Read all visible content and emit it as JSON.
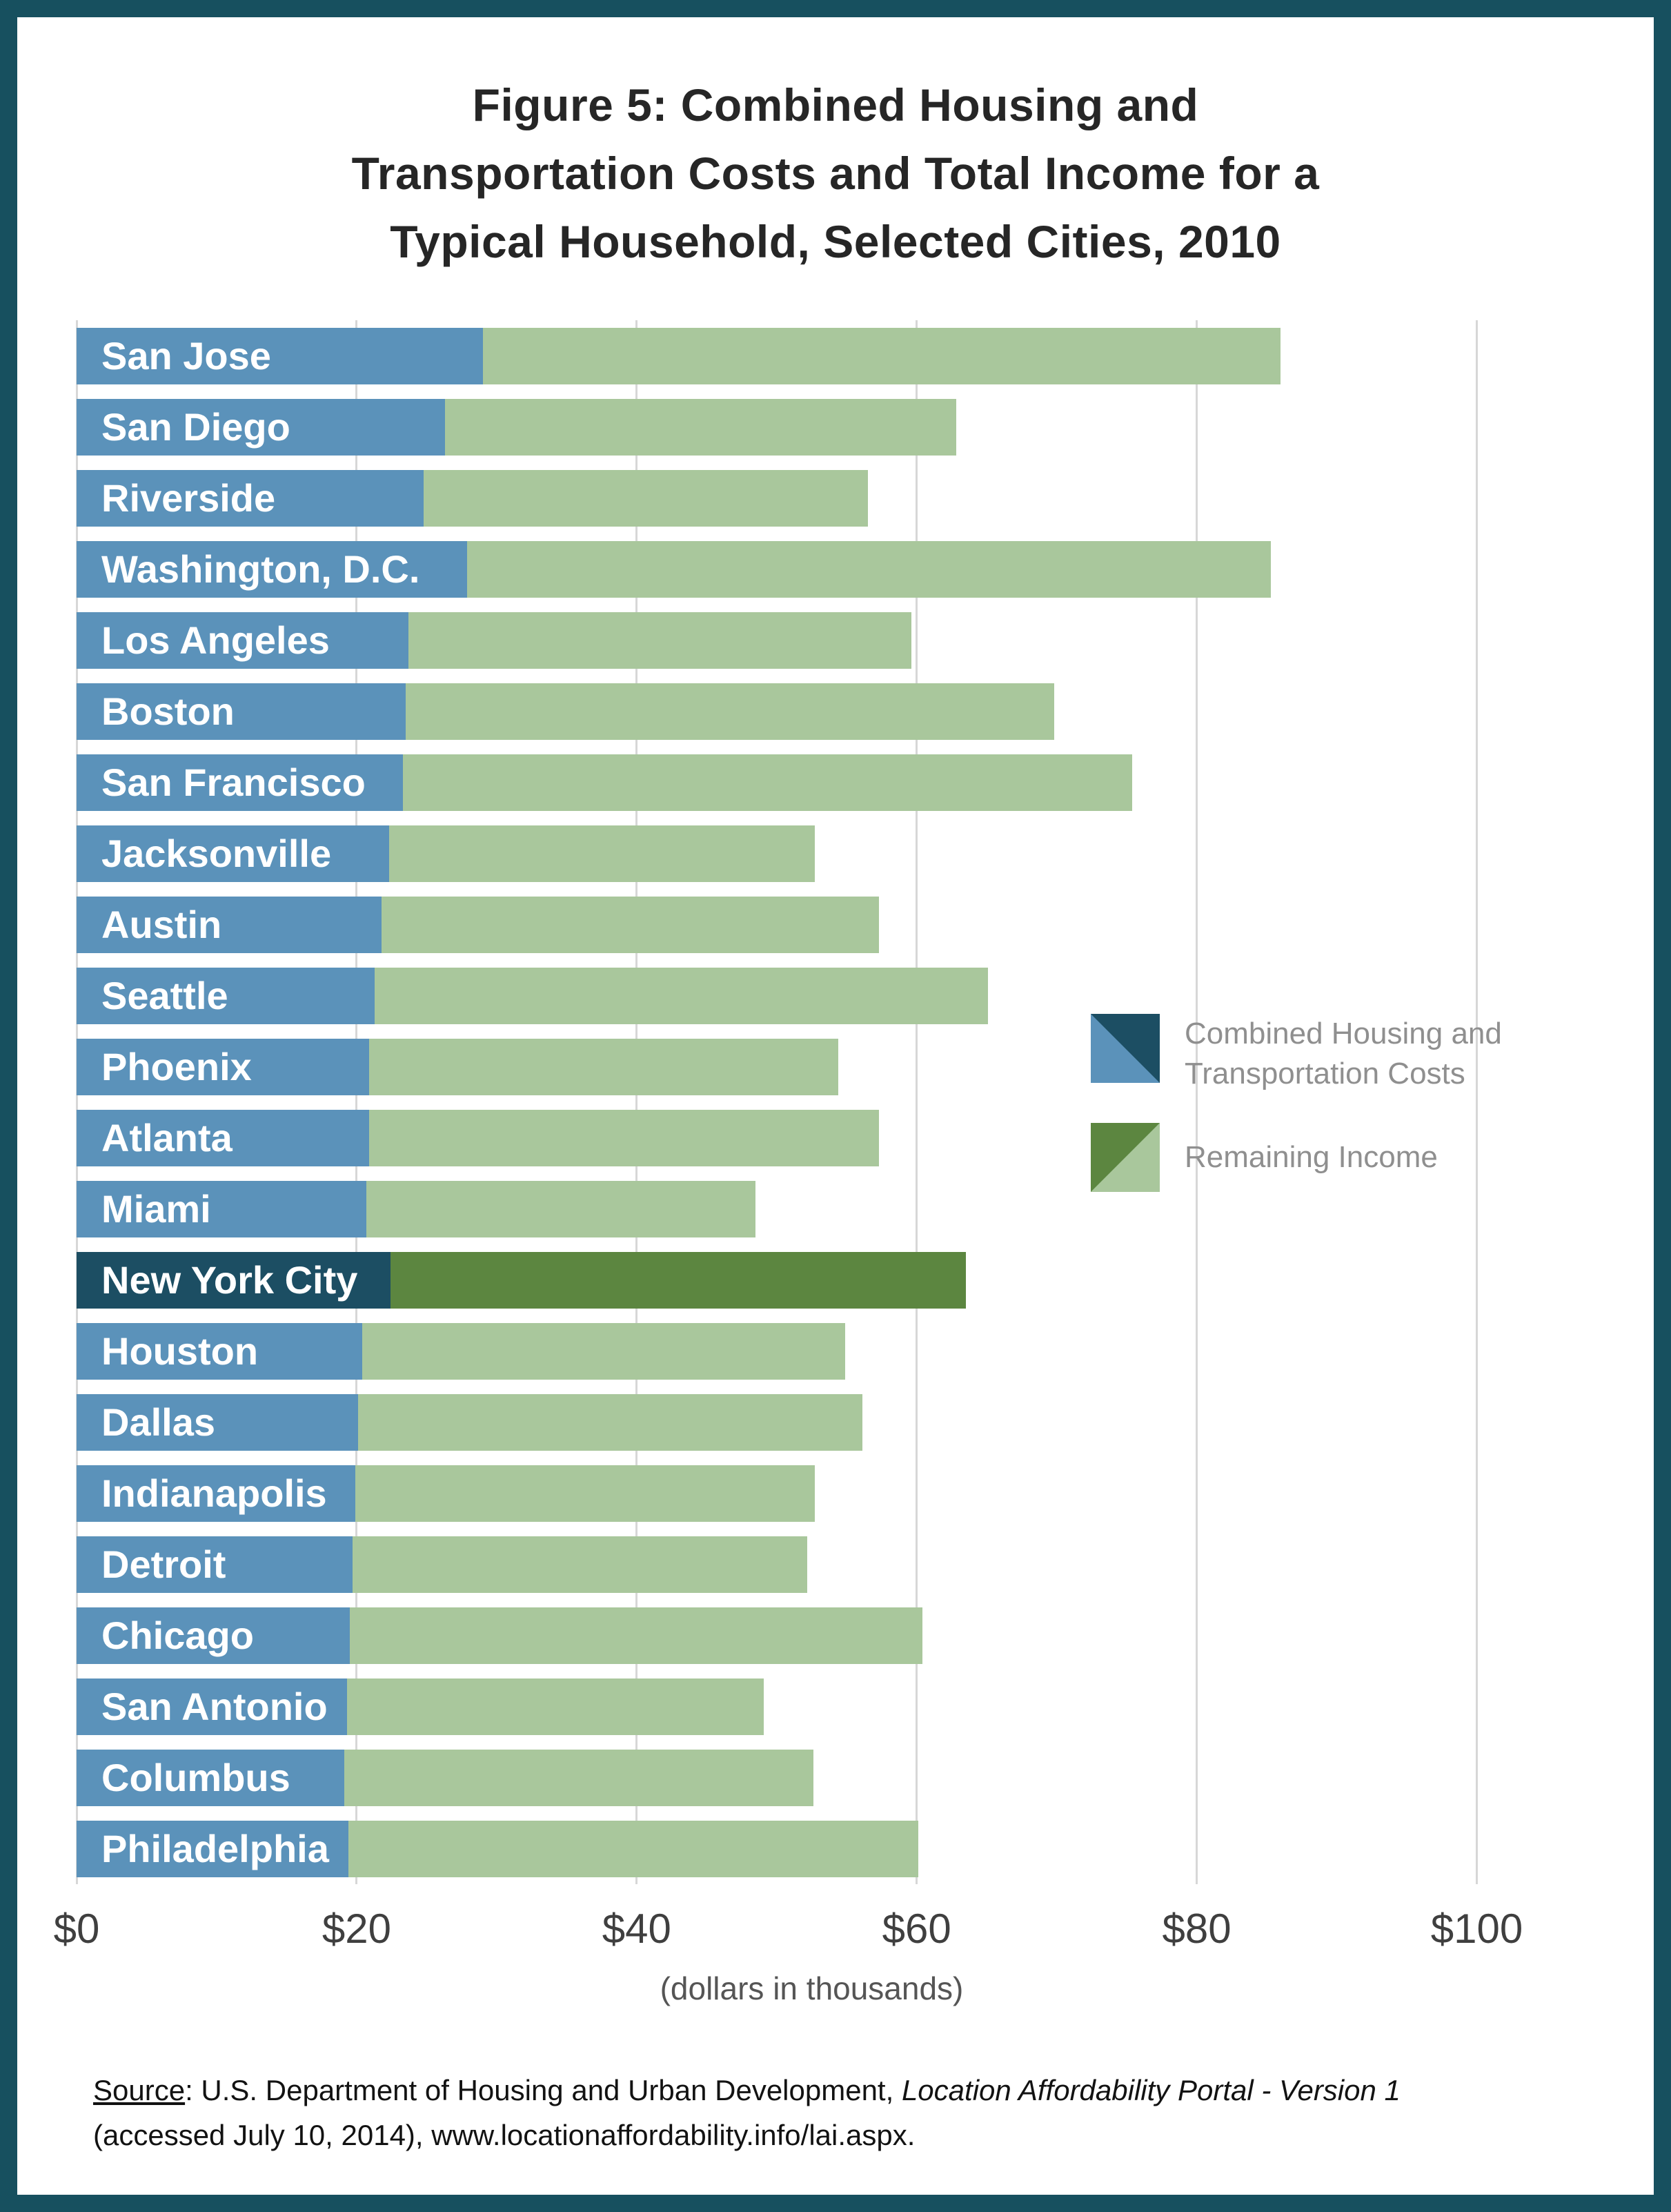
{
  "title_lines": [
    "Figure 5: Combined Housing and",
    "Transportation Costs and Total Income for a",
    "Typical Household, Selected Cities, 2010"
  ],
  "chart_data": {
    "type": "bar",
    "orientation": "horizontal",
    "stacked": true,
    "categories": [
      "San Jose",
      "San Diego",
      "Riverside",
      "Washington, D.C.",
      "Los Angeles",
      "Boston",
      "San Francisco",
      "Jacksonville",
      "Austin",
      "Seattle",
      "Phoenix",
      "Atlanta",
      "Miami",
      "New York City",
      "Houston",
      "Dallas",
      "Indianapolis",
      "Detroit",
      "Chicago",
      "San Antonio",
      "Columbus",
      "Philadelphia"
    ],
    "series": [
      {
        "name": "Combined Housing and Transportation Costs",
        "values": [
          29.0,
          26.3,
          24.8,
          27.9,
          23.7,
          23.5,
          23.3,
          22.3,
          21.8,
          21.3,
          20.9,
          20.9,
          20.7,
          22.4,
          20.4,
          20.1,
          19.9,
          19.7,
          19.5,
          19.3,
          19.1,
          19.4
        ]
      },
      {
        "name": "Remaining Income",
        "values": [
          57.0,
          36.5,
          31.7,
          57.4,
          35.9,
          46.3,
          52.1,
          30.4,
          35.5,
          43.8,
          33.5,
          36.4,
          27.8,
          41.1,
          34.5,
          36.0,
          32.8,
          32.5,
          40.9,
          29.8,
          33.5,
          40.7
        ]
      }
    ],
    "totals_note": "total bar length = total income (dollars in thousands)",
    "highlight": "New York City",
    "xlabel": "(dollars in thousands)",
    "xlim": [
      0,
      105
    ],
    "ticks": [
      0,
      20,
      40,
      60,
      80,
      100
    ],
    "tick_labels": [
      "$0",
      "$20",
      "$40",
      "$60",
      "$80",
      "$100"
    ],
    "grid": true,
    "legend_position": "right-middle",
    "colors": {
      "costs": "#5b92ba",
      "income": "#a9c79c",
      "costs_highlight": "#1c4e63",
      "income_highlight": "#5c8640",
      "gridline": "#d7d7d7",
      "frame": "#17505f"
    }
  },
  "legend": {
    "item1_line1": "Combined Housing and",
    "item1_line2": "Transportation Costs",
    "item2": "Remaining Income"
  },
  "source": {
    "label": "Source",
    "after_label": ": U.S. Department of Housing and Urban Development, ",
    "italic": "Location Affordability Portal - Version 1",
    "line2": "(accessed July 10, 2014), www.locationaffordability.info/lai.aspx."
  }
}
